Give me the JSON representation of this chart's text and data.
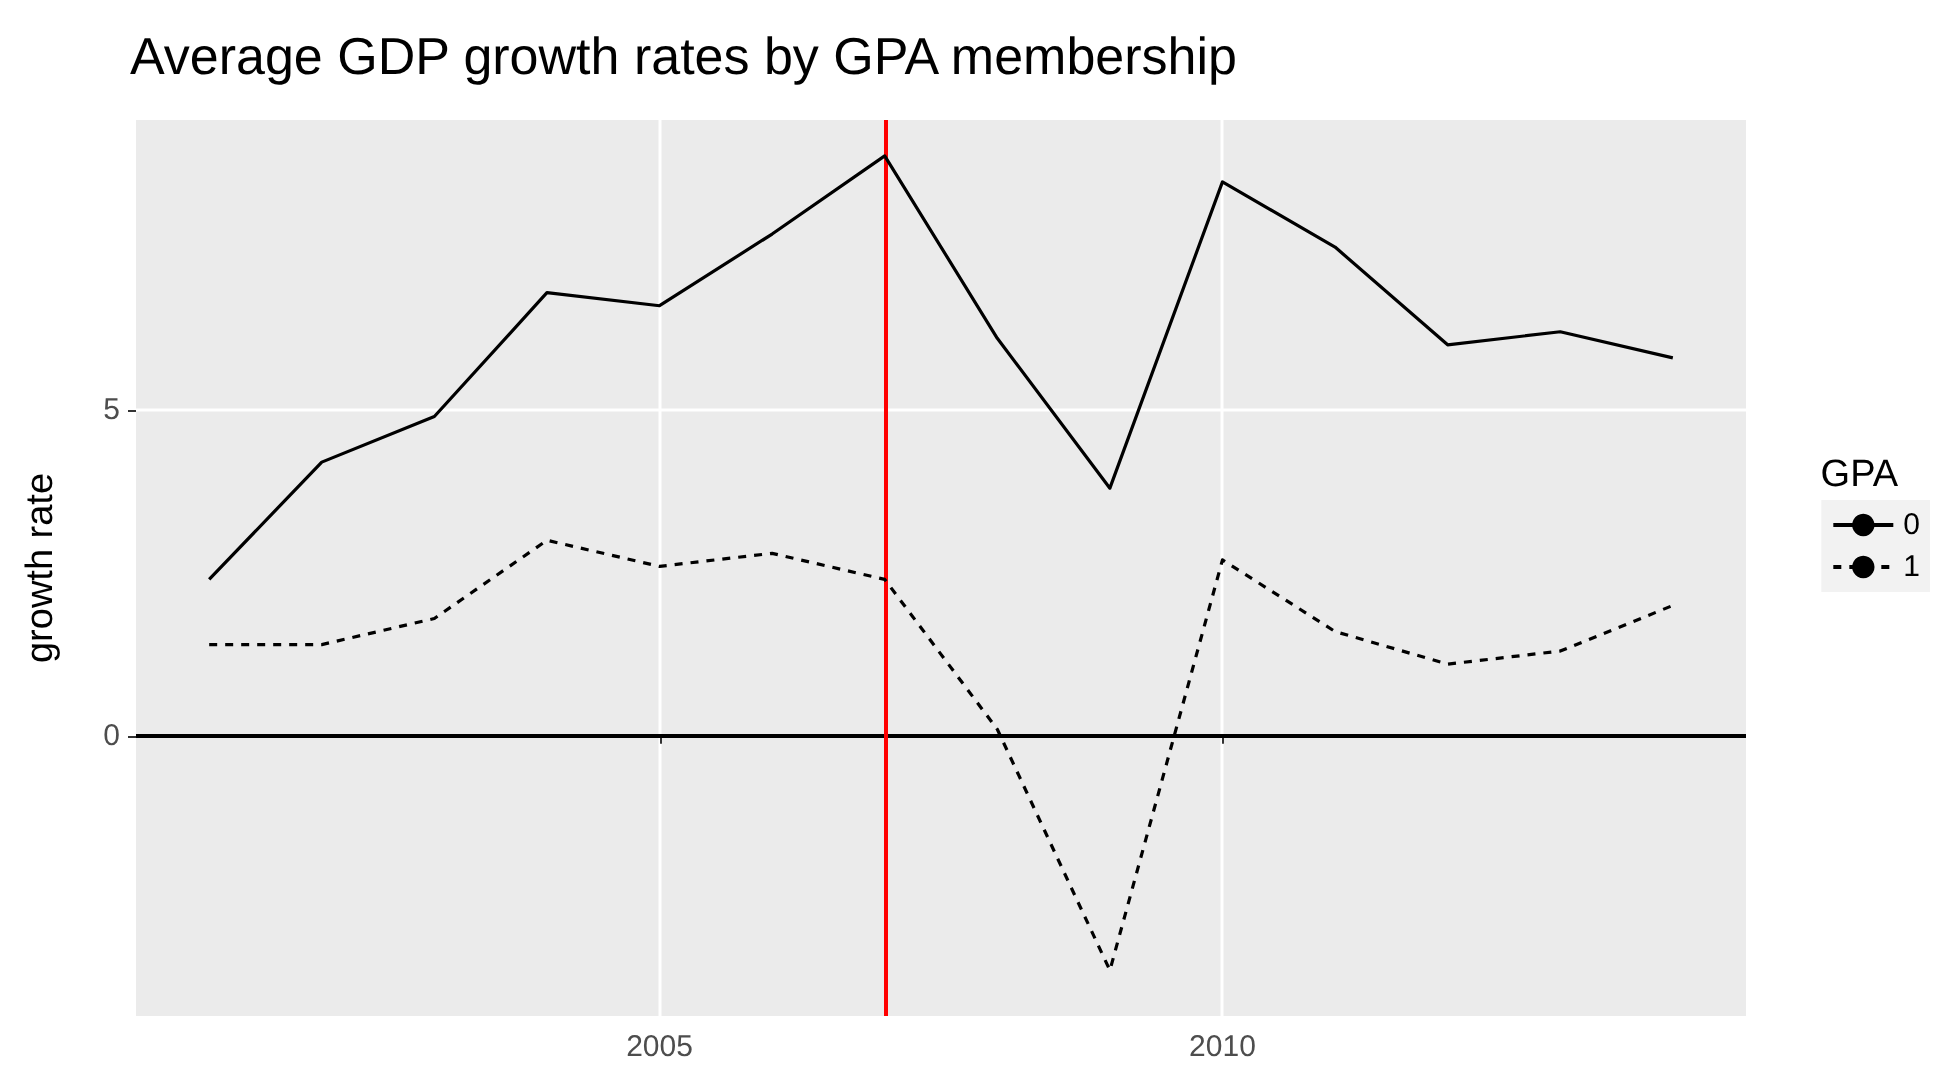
{
  "chart_data": {
    "type": "line",
    "title": "Average GDP growth rates by GPA membership",
    "ylabel": "growth rate",
    "legend_title": "GPA",
    "x": [
      2001,
      2002,
      2003,
      2004,
      2005,
      2006,
      2007,
      2008,
      2009,
      2010,
      2011,
      2012,
      2013,
      2014
    ],
    "series": [
      {
        "name": "0",
        "color": "#000000",
        "line_style": "solid",
        "values": [
          2.4,
          4.2,
          4.9,
          6.8,
          6.6,
          7.7,
          8.9,
          6.1,
          3.8,
          8.5,
          7.5,
          6.0,
          6.2,
          5.8
        ]
      },
      {
        "name": "1",
        "color": "#000000",
        "line_style": "dashed",
        "values": [
          1.4,
          1.4,
          1.8,
          3.0,
          2.6,
          2.8,
          2.4,
          0.1,
          -3.6,
          2.7,
          1.6,
          1.1,
          1.3,
          2.0
        ]
      }
    ],
    "xlim": [
      2000.35,
      2014.65
    ],
    "xticks": [
      2005,
      2010
    ],
    "ylim": [
      -4.3,
      9.45
    ],
    "yticks": [
      0,
      5
    ],
    "grid": true,
    "legend": "right",
    "marker": "none",
    "ref_lines": [
      {
        "axis": "y",
        "value": 0,
        "color": "#000000"
      },
      {
        "axis": "x",
        "value": 2007,
        "color": "#ff0000"
      }
    ]
  }
}
